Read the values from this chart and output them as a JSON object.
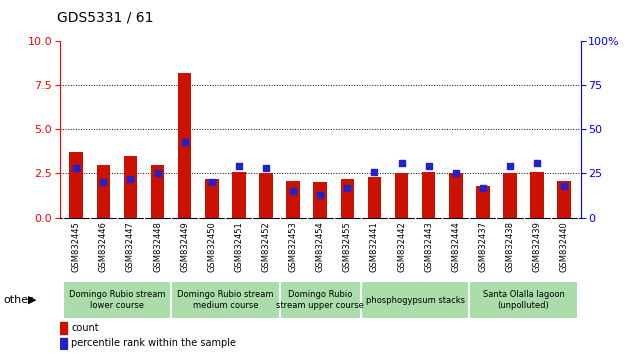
{
  "title": "GDS5331 / 61",
  "categories": [
    "GSM832445",
    "GSM832446",
    "GSM832447",
    "GSM832448",
    "GSM832449",
    "GSM832450",
    "GSM832451",
    "GSM832452",
    "GSM832453",
    "GSM832454",
    "GSM832455",
    "GSM832441",
    "GSM832442",
    "GSM832443",
    "GSM832444",
    "GSM832437",
    "GSM832438",
    "GSM832439",
    "GSM832440"
  ],
  "count_values": [
    3.7,
    3.0,
    3.5,
    3.0,
    8.2,
    2.2,
    2.6,
    2.5,
    2.1,
    2.0,
    2.2,
    2.3,
    2.5,
    2.6,
    2.5,
    1.8,
    2.5,
    2.6,
    2.1
  ],
  "percentile_values": [
    28,
    20,
    22,
    25,
    43,
    20,
    29,
    28,
    15,
    13,
    17,
    26,
    31,
    29,
    25,
    17,
    29,
    31,
    18
  ],
  "bar_color": "#cc1100",
  "dot_color": "#2222cc",
  "ylim_left": [
    0,
    10
  ],
  "ylim_right": [
    0,
    100
  ],
  "yticks_left": [
    0,
    2.5,
    5.0,
    7.5,
    10
  ],
  "yticks_right": [
    0,
    25,
    50,
    75,
    100
  ],
  "grid_lines": [
    2.5,
    5.0,
    7.5
  ],
  "group_labels": [
    {
      "label": "Domingo Rubio stream\nlower course",
      "start": 0,
      "end": 4
    },
    {
      "label": "Domingo Rubio stream\nmedium course",
      "start": 4,
      "end": 8
    },
    {
      "label": "Domingo Rubio\nstream upper course",
      "start": 8,
      "end": 11
    },
    {
      "label": "phosphogypsum stacks",
      "start": 11,
      "end": 15
    },
    {
      "label": "Santa Olalla lagoon\n(unpolluted)",
      "start": 15,
      "end": 19
    }
  ],
  "other_label": "other",
  "legend_count_label": "count",
  "legend_pct_label": "percentile rank within the sample",
  "bar_width": 0.5,
  "group_bg_color": "#aaddaa",
  "xtick_bg_color": "#cccccc",
  "title_fontsize": 10,
  "axis_fontsize": 8,
  "xtick_fontsize": 6,
  "group_fontsize": 6,
  "legend_fontsize": 7
}
